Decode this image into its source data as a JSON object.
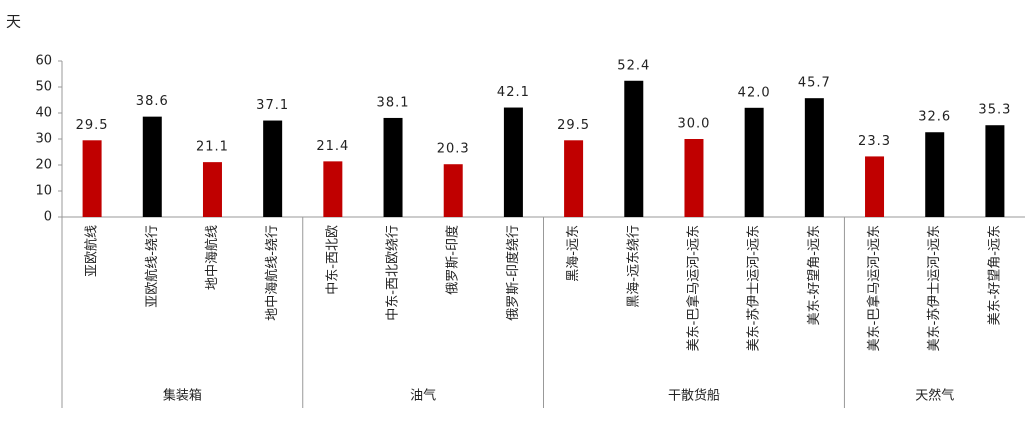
{
  "chart_data": {
    "type": "bar",
    "y_label": "天",
    "categories": [
      "亚欧航线",
      "亚欧航线-绕行",
      "地中海航线",
      "地中海航线-绕行",
      "中东-西北欧",
      "中东-西北欧绕行",
      "俄罗斯-印度",
      "俄罗斯-印度绕行",
      "黑海-远东",
      "黑海-远东绕行",
      "美东-巴拿马运河-远东",
      "美东-苏伊士运河-远东",
      "美东-好望角-远东",
      "美东-巴拿马运河-远东",
      "美东-苏伊士运河-远东",
      "美东-好望角-远东"
    ],
    "values": [
      29.5,
      38.6,
      21.1,
      37.1,
      21.4,
      38.1,
      20.3,
      42.1,
      29.5,
      52.4,
      30.0,
      42.0,
      45.7,
      23.3,
      32.6,
      35.3
    ],
    "value_labels": [
      "29.5",
      "38.6",
      "21.1",
      "37.1",
      "21.4",
      "38.1",
      "20.3",
      "42.1",
      "29.5",
      "52.4",
      "30.0",
      "42.0",
      "45.7",
      "23.3",
      "32.6",
      "35.3"
    ],
    "colors": [
      "#c00000",
      "#000000",
      "#c00000",
      "#000000",
      "#c00000",
      "#000000",
      "#c00000",
      "#000000",
      "#c00000",
      "#000000",
      "#c00000",
      "#000000",
      "#000000",
      "#c00000",
      "#000000",
      "#000000"
    ],
    "groups": [
      {
        "label": "集装箱",
        "size": 4
      },
      {
        "label": "油气",
        "size": 4
      },
      {
        "label": "干散货船",
        "size": 5
      },
      {
        "label": "天然气",
        "size": 3
      }
    ],
    "ylim": [
      0,
      60
    ],
    "yticks": [
      0,
      10,
      20,
      30,
      40,
      50,
      60
    ],
    "grid": false
  }
}
